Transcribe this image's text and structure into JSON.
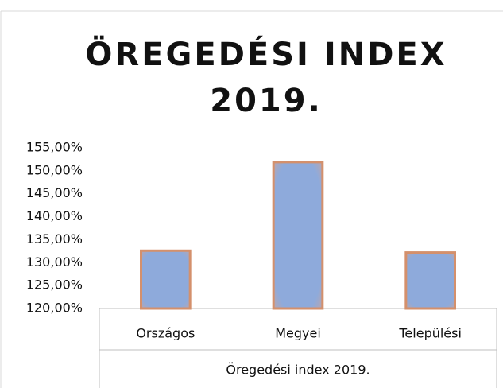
{
  "chart_data": {
    "type": "bar",
    "title": "ÖREGEDÉSI INDEX 2019.",
    "x_axis_title": "Öregedési index 2019.",
    "categories": [
      "Országos",
      "Megyei",
      "Települési"
    ],
    "values": [
      132.6,
      151.9,
      132.2
    ],
    "color": "#8eaadb",
    "edge_color": "#d4906c",
    "ylim": [
      120,
      155
    ],
    "yticks": [
      {
        "value": 120,
        "label": "120,00%"
      },
      {
        "value": 125,
        "label": "125,00%"
      },
      {
        "value": 130,
        "label": "130,00%"
      },
      {
        "value": 135,
        "label": "135,00%"
      },
      {
        "value": 140,
        "label": "140,00%"
      },
      {
        "value": 145,
        "label": "145,00%"
      },
      {
        "value": 150,
        "label": "150,00%"
      },
      {
        "value": 155,
        "label": "155,00%"
      }
    ],
    "grid": false
  }
}
